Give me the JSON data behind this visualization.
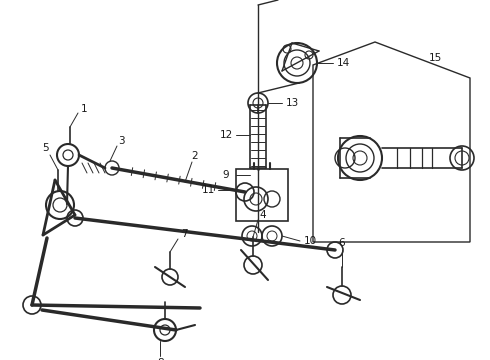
{
  "bg_color": "#ffffff",
  "line_color": "#2a2a2a",
  "label_color": "#1a1a1a",
  "figw": 4.9,
  "figh": 3.6,
  "dpi": 100
}
